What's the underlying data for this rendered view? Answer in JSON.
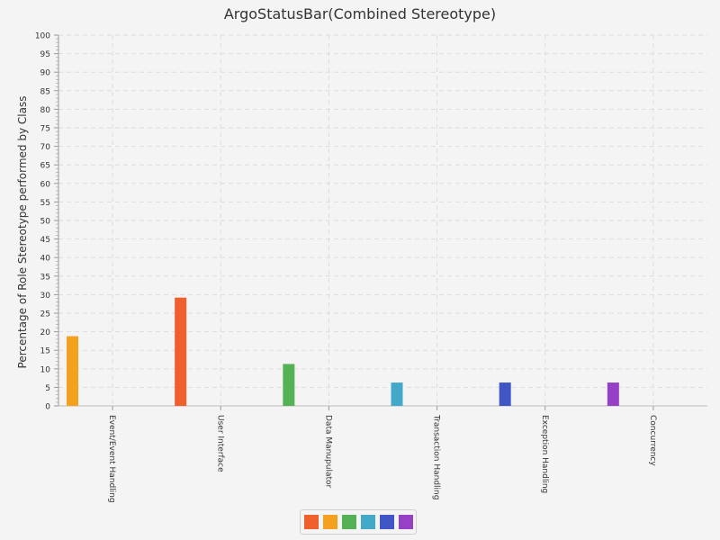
{
  "chart_data": {
    "type": "bar",
    "title": "ArgoStatusBar(Combined Stereotype)",
    "xlabel": "",
    "ylabel": "Percentage of Role Stereotype performed by Class",
    "ylim": [
      0,
      100
    ],
    "yticks": [
      "0",
      "5",
      "10",
      "15",
      "20",
      "25",
      "30",
      "35",
      "40",
      "45",
      "50",
      "55",
      "60",
      "65",
      "70",
      "75",
      "80",
      "85",
      "90",
      "95",
      "100"
    ],
    "categories": [
      "Event/Event Handling",
      "User Interface",
      "Data Manupulator",
      "Transaction Handling",
      "Exception Handling",
      "Concurrency"
    ],
    "values": [
      18.8,
      29.2,
      11.3,
      6.3,
      6.3,
      6.3
    ],
    "bar_colors": [
      "#f3a11f",
      "#f0602d",
      "#55b155",
      "#42a9c8",
      "#3f56c4",
      "#9640c8"
    ],
    "grid": true,
    "legend": {
      "position": "bottom-center",
      "swatches": [
        "#f0602d",
        "#f3a11f",
        "#55b155",
        "#42a9c8",
        "#3f56c4",
        "#9640c8"
      ]
    }
  }
}
